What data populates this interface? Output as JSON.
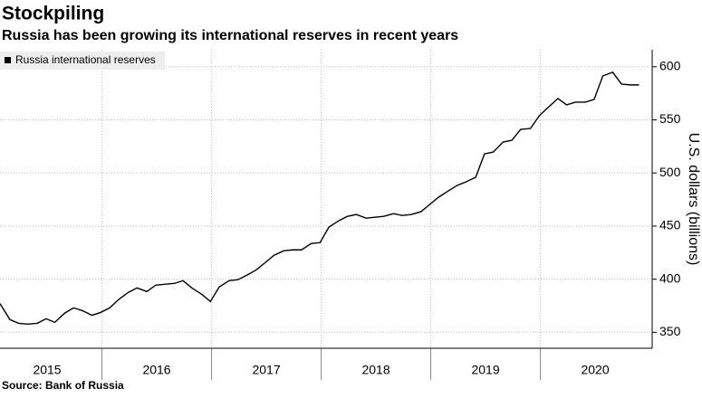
{
  "chart_data": {
    "type": "line",
    "title": "Stockpiling",
    "subtitle": "Russia has been growing its international reserves in recent years",
    "source": "Source: Bank of Russia",
    "y_axis_label": "U.S. dollars (billions)",
    "legend": "top-left",
    "grid": true,
    "x": [
      2015.07,
      2015.16,
      2015.24,
      2015.32,
      2015.41,
      2015.49,
      2015.57,
      2015.66,
      2015.74,
      2015.82,
      2015.91,
      2015.99,
      2016.07,
      2016.16,
      2016.24,
      2016.32,
      2016.41,
      2016.49,
      2016.57,
      2016.66,
      2016.74,
      2016.82,
      2016.91,
      2016.99,
      2017.07,
      2017.16,
      2017.24,
      2017.32,
      2017.41,
      2017.49,
      2017.57,
      2017.66,
      2017.74,
      2017.82,
      2017.91,
      2017.99,
      2018.07,
      2018.16,
      2018.24,
      2018.32,
      2018.41,
      2018.49,
      2018.57,
      2018.66,
      2018.74,
      2018.82,
      2018.91,
      2018.99,
      2019.07,
      2019.16,
      2019.24,
      2019.32,
      2019.41,
      2019.49,
      2019.57,
      2019.66,
      2019.74,
      2019.82,
      2019.91,
      2019.99,
      2020.07,
      2020.16,
      2020.24,
      2020.32,
      2020.41,
      2020.49,
      2020.57,
      2020.66,
      2020.74,
      2020.82,
      2020.9
    ],
    "series": [
      {
        "name": "Russia international reserves",
        "color": "#000000",
        "values": [
          377,
          362,
          358.5,
          357.7,
          358.5,
          362.8,
          359.4,
          368,
          373,
          370.5,
          366,
          368.8,
          373,
          381.5,
          387.5,
          391.8,
          388.4,
          394.4,
          395.2,
          396,
          398.6,
          391.8,
          385.8,
          379,
          392.7,
          398.6,
          399.5,
          403.7,
          408.9,
          415.7,
          422.5,
          426.8,
          427.6,
          427.6,
          433.6,
          434.4,
          449,
          455,
          459.2,
          460.9,
          457.5,
          458.3,
          459.2,
          461.7,
          460,
          460.9,
          463.5,
          470.3,
          477.1,
          483.1,
          488.2,
          491.6,
          495.9,
          518,
          519.7,
          529.1,
          530.8,
          541,
          541.9,
          553.9,
          561.6,
          570.1,
          564.1,
          566.7,
          566.7,
          569.2,
          591.4,
          594.8,
          583.7,
          582.9,
          582.9
        ]
      }
    ],
    "xlim": [
      2015.07,
      2021.02
    ],
    "xticks": [
      {
        "value": 2015.5,
        "label": "2015"
      },
      {
        "value": 2016.5,
        "label": "2016"
      },
      {
        "value": 2017.5,
        "label": "2017"
      },
      {
        "value": 2018.5,
        "label": "2018"
      },
      {
        "value": 2019.5,
        "label": "2019"
      },
      {
        "value": 2020.5,
        "label": "2020"
      }
    ],
    "xminorticks": [
      2016,
      2017,
      2018,
      2019,
      2020
    ],
    "ylim": [
      335,
      616
    ],
    "yticks": [
      350,
      400,
      450,
      500,
      550,
      600
    ]
  }
}
